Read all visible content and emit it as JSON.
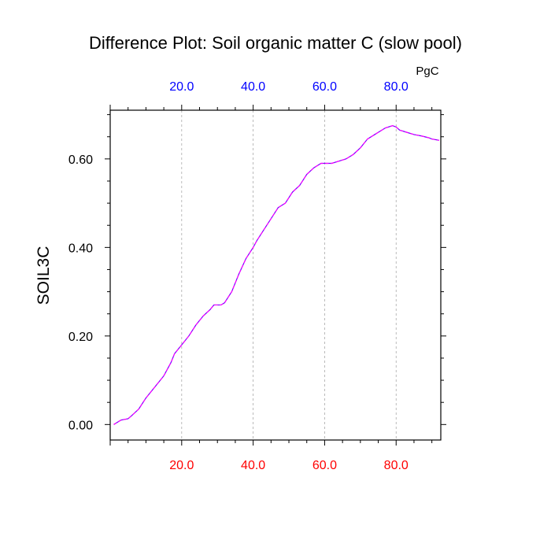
{
  "chart_data": {
    "type": "line",
    "title": "Difference Plot: Soil organic matter C (slow pool)",
    "units_label": "PgC",
    "xlabel": "",
    "ylabel": "SOIL3C",
    "xlim": [
      0,
      92.5
    ],
    "ylim": [
      -0.035,
      0.71
    ],
    "x_ticks": [
      20,
      40,
      60,
      80
    ],
    "x_tick_labels_bottom": [
      "20.0",
      "40.0",
      "60.0",
      "80.0"
    ],
    "x_tick_labels_top": [
      "20.0",
      "40.0",
      "60.0",
      "80.0"
    ],
    "y_ticks": [
      0.0,
      0.2,
      0.4,
      0.6
    ],
    "y_tick_labels": [
      "0.00",
      "0.20",
      "0.40",
      "0.60"
    ],
    "grid": "vertical dashed at x ticks",
    "colors": {
      "bottom_tick_labels": "#ff0000",
      "top_tick_labels": "#0000ff",
      "series_line": "#7a00ff",
      "series_dash": "#ff00ff",
      "grid": "#aaaaaa"
    },
    "series": [
      {
        "x": [
          1,
          2,
          3,
          5,
          6,
          8,
          10,
          13,
          15,
          17,
          18,
          20,
          22,
          24,
          26,
          28,
          29,
          31,
          32,
          34,
          36,
          38,
          40,
          41,
          43,
          45,
          47,
          49,
          51,
          53,
          55,
          57,
          59,
          60,
          62,
          64,
          66,
          68,
          70,
          72,
          74,
          75,
          77,
          79,
          80,
          81,
          83,
          85,
          87,
          89,
          90,
          92
        ],
        "y": [
          0.0,
          0.005,
          0.01,
          0.013,
          0.02,
          0.035,
          0.06,
          0.09,
          0.11,
          0.14,
          0.16,
          0.18,
          0.2,
          0.225,
          0.245,
          0.26,
          0.27,
          0.27,
          0.275,
          0.3,
          0.34,
          0.375,
          0.4,
          0.415,
          0.44,
          0.465,
          0.49,
          0.5,
          0.525,
          0.54,
          0.565,
          0.58,
          0.59,
          0.59,
          0.59,
          0.595,
          0.6,
          0.61,
          0.625,
          0.645,
          0.655,
          0.66,
          0.67,
          0.675,
          0.672,
          0.665,
          0.66,
          0.655,
          0.652,
          0.648,
          0.645,
          0.642
        ]
      }
    ]
  }
}
